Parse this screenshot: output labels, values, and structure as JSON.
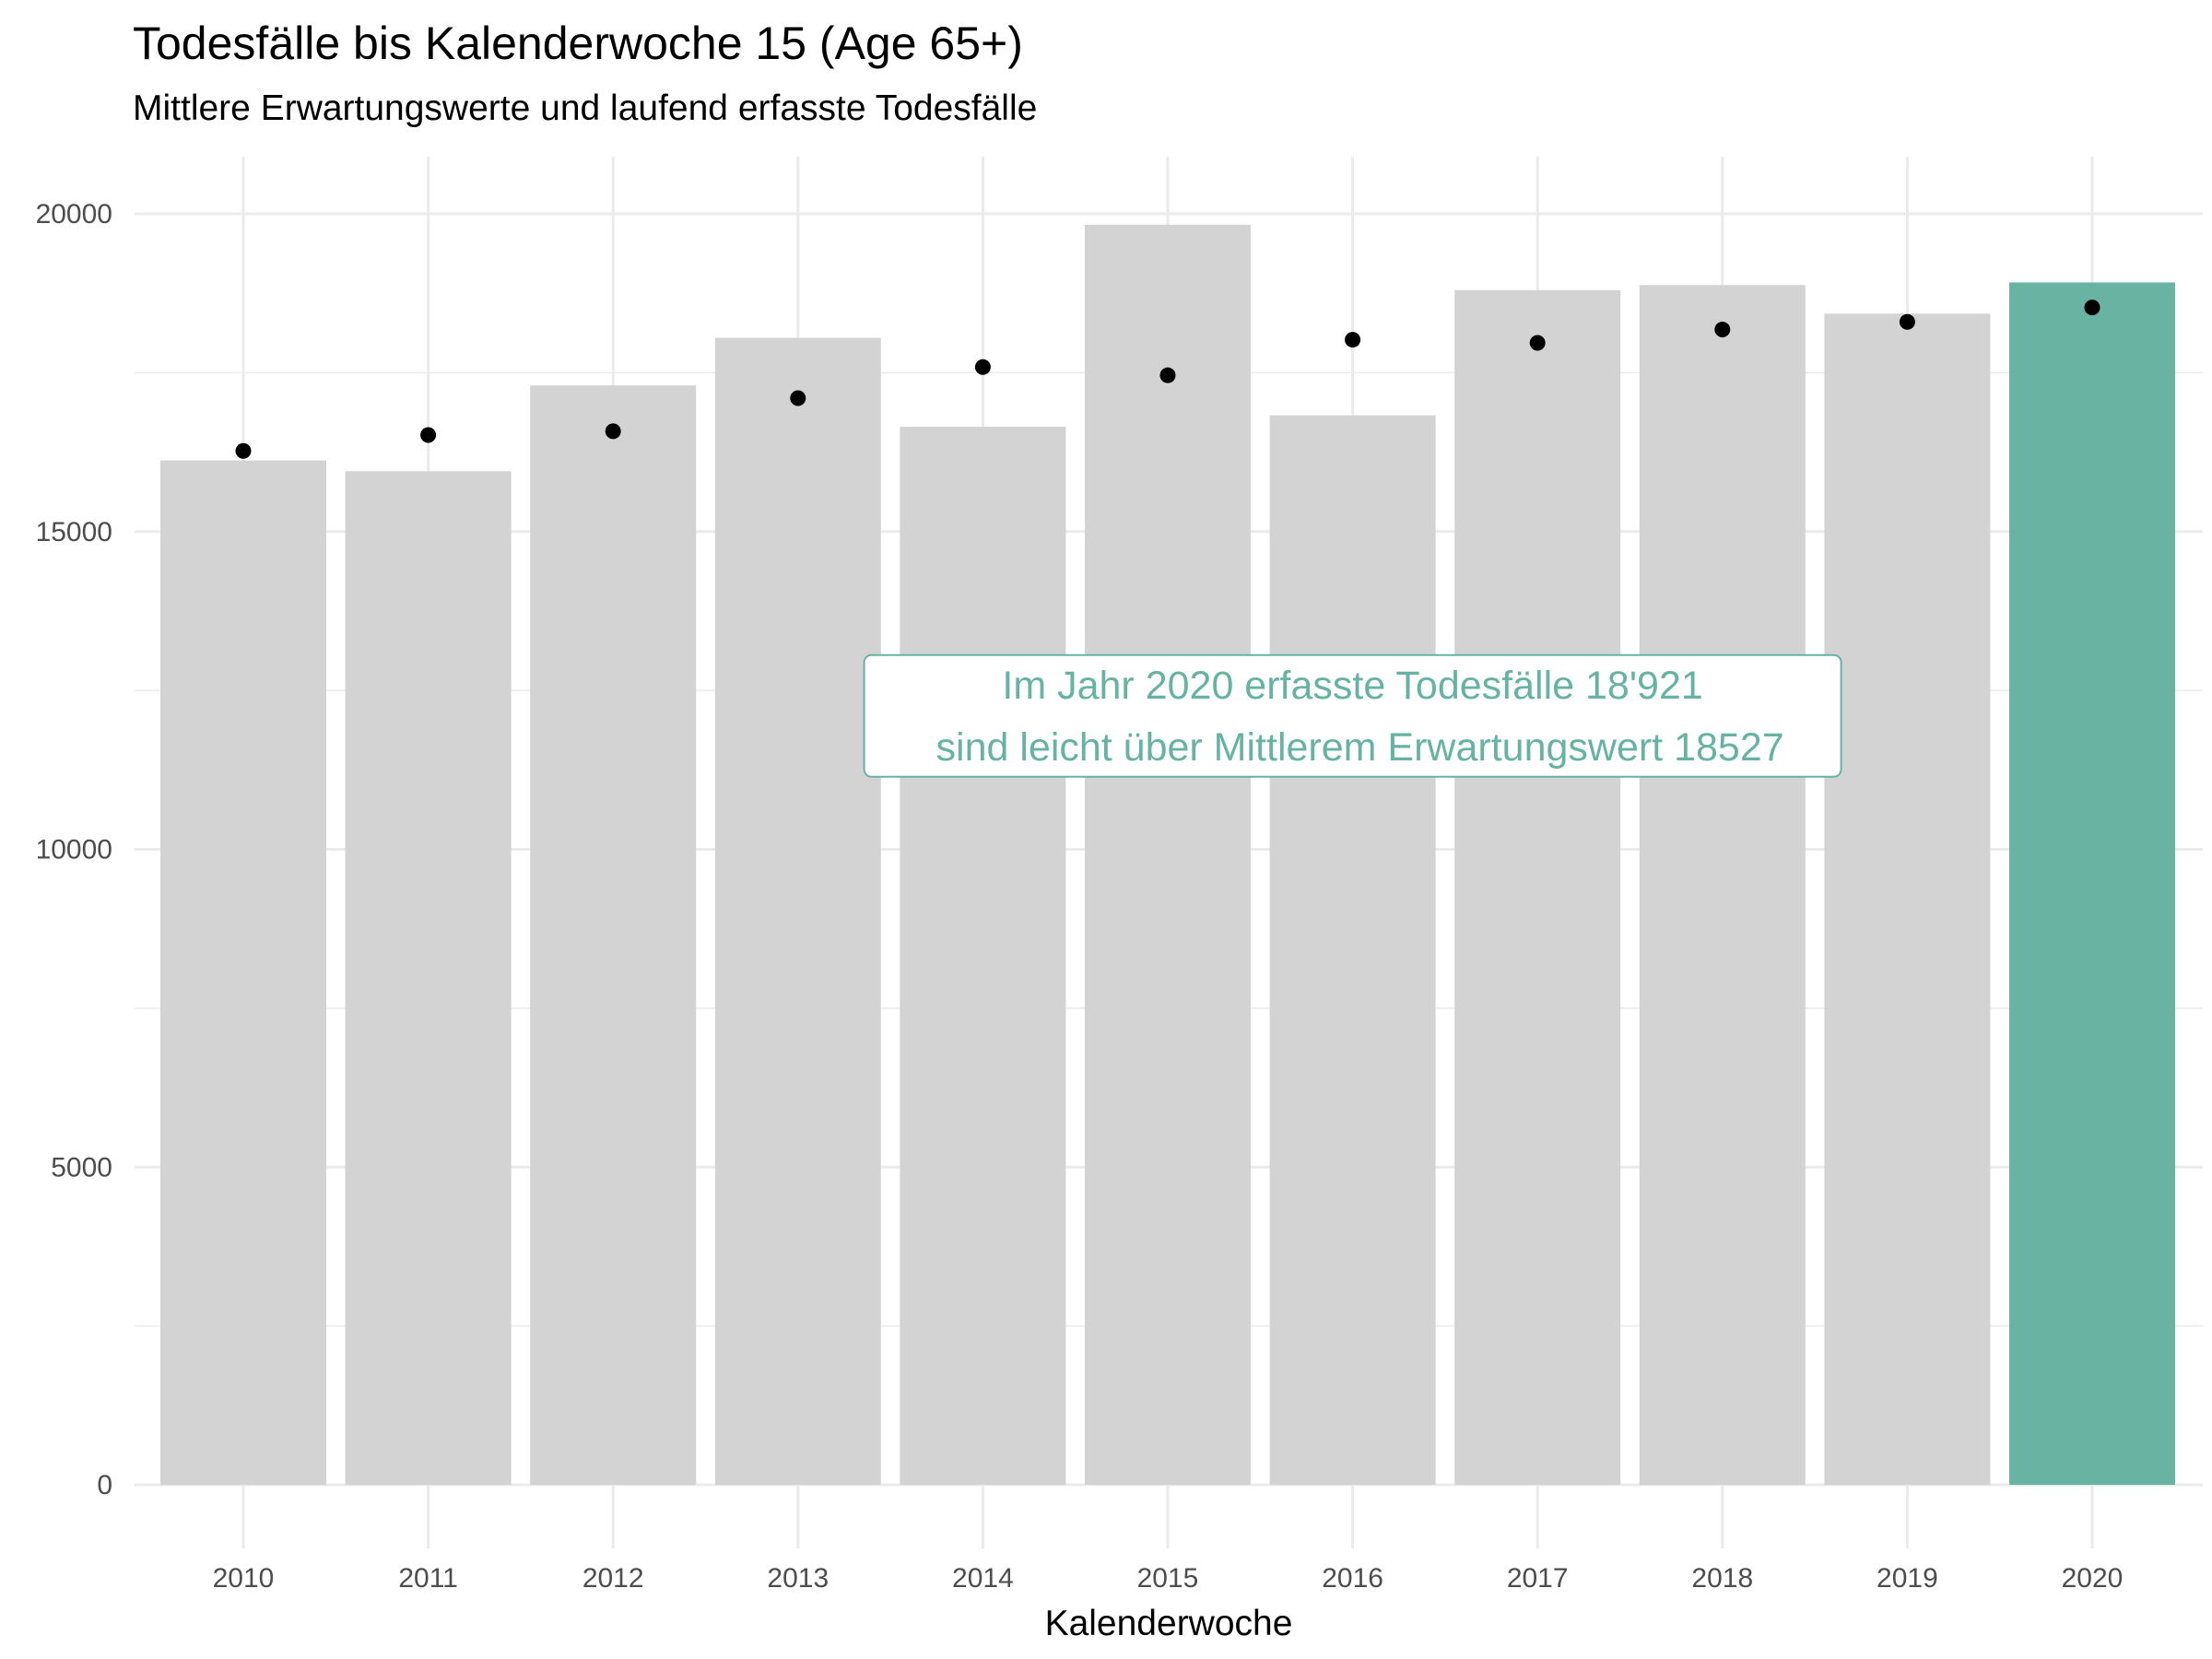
{
  "chart_data": {
    "type": "bar",
    "title": "Todesfälle bis Kalenderwoche 15 (Age 65+)",
    "subtitle": "Mittlere Erwartungswerte und laufend erfasste Todesfälle",
    "xlabel": "Kalenderwoche",
    "ylabel": "",
    "categories": [
      "2010",
      "2011",
      "2012",
      "2013",
      "2014",
      "2015",
      "2016",
      "2017",
      "2018",
      "2019",
      "2020"
    ],
    "series": [
      {
        "name": "erfasste Todesfälle",
        "kind": "bar",
        "values": [
          16120,
          15950,
          17300,
          18050,
          16650,
          19830,
          16830,
          18800,
          18880,
          18430,
          18921
        ]
      },
      {
        "name": "Mittlere Erwartungswerte",
        "kind": "point",
        "values": [
          16270,
          16520,
          16580,
          17100,
          17590,
          17460,
          18020,
          17970,
          18180,
          18300,
          18527
        ]
      }
    ],
    "highlight_category": "2020",
    "colors": {
      "bar": "#d3d3d3",
      "highlight_bar": "#69b3a2",
      "point": "#000000",
      "grid": "#ebebeb",
      "annotation": "#66b3a3"
    },
    "ylim": [
      -1000,
      20900
    ],
    "yticks": [
      0,
      5000,
      10000,
      15000,
      20000
    ],
    "grid": true,
    "annotation": {
      "lines": [
        "Im Jahr 2020 erfasste Todesfälle 18'921",
        "sind leicht über Mittlerem Erwartungswert 18527"
      ],
      "category_center": "2016",
      "y_center": 12100
    }
  }
}
